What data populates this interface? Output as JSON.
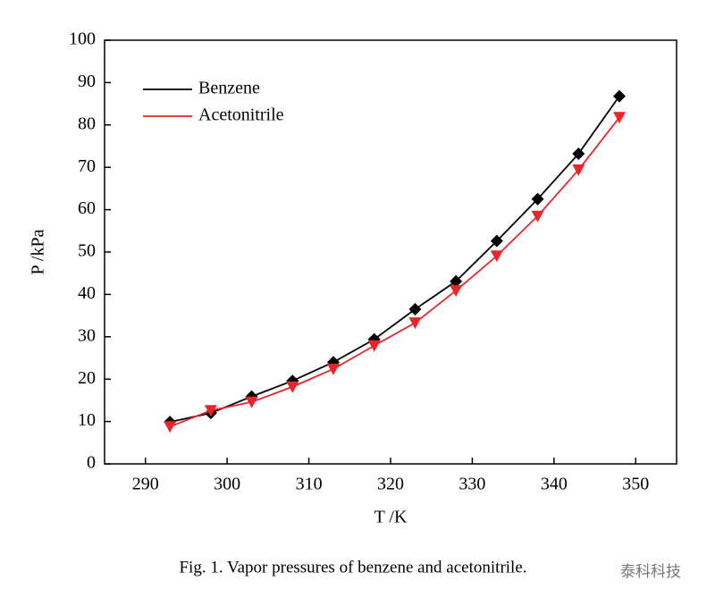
{
  "chart_data": {
    "type": "line_marker",
    "xlabel": "T /K",
    "ylabel": "P /kPa",
    "caption": "Fig. 1. Vapor pressures of benzene and acetonitrile.",
    "watermark": "泰科科技",
    "xlim": [
      285,
      355
    ],
    "xticks": [
      290,
      300,
      310,
      320,
      330,
      340,
      350
    ],
    "ylim": [
      0,
      100
    ],
    "yticks": [
      0,
      10,
      20,
      30,
      40,
      50,
      60,
      70,
      80,
      90,
      100
    ],
    "legend": "upper-left",
    "series": [
      {
        "name": "Benzene",
        "color": "#000000",
        "marker": "diamond",
        "x": [
          293,
          298,
          303,
          308,
          313,
          318,
          323,
          328,
          333,
          338,
          343,
          348
        ],
        "values": [
          9.9,
          12.0,
          15.9,
          19.6,
          24.0,
          29.4,
          36.5,
          43.1,
          52.6,
          62.5,
          73.2,
          86.8
        ]
      },
      {
        "name": "Acetonitrile",
        "color": "#e8262a",
        "marker": "triangle-down",
        "x": [
          293,
          298,
          303,
          308,
          313,
          318,
          323,
          328,
          333,
          338,
          343,
          348
        ],
        "values": [
          8.8,
          12.6,
          14.6,
          18.2,
          22.4,
          27.9,
          33.3,
          40.9,
          49.1,
          58.5,
          69.4,
          81.8
        ]
      }
    ]
  }
}
